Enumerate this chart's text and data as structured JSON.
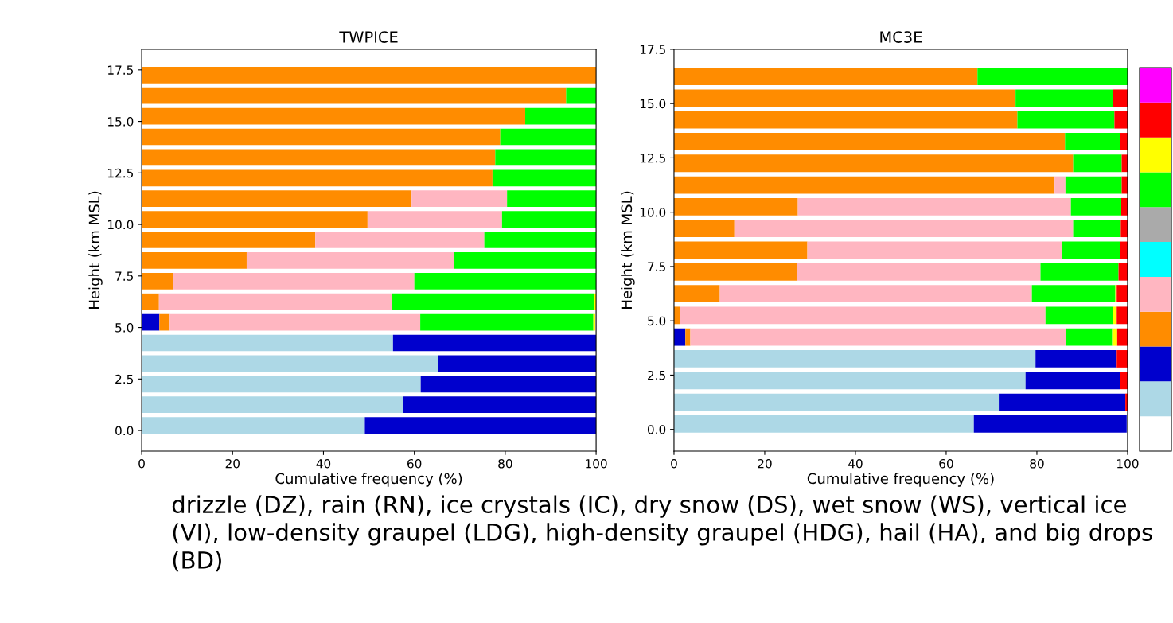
{
  "chart_data": [
    {
      "type": "bar",
      "orientation": "horizontal",
      "stacked": true,
      "title": "TWPICE",
      "xlabel": "Cumulative frequency (%)",
      "ylabel": "Height (km MSL)",
      "x": [
        0.25,
        1.25,
        2.25,
        3.25,
        4.25,
        5.25,
        6.25,
        7.25,
        8.25,
        9.25,
        10.25,
        11.25,
        12.25,
        13.25,
        14.25,
        15.25,
        16.25,
        17.25
      ],
      "xlim": [
        0,
        100
      ],
      "xticks": [
        0,
        20,
        40,
        60,
        80,
        100
      ],
      "ylim": [
        -1.0,
        18.5
      ],
      "yticks": [
        {
          "value": 0,
          "label": "0.0"
        },
        2.5,
        {
          "value": 5,
          "label": "5.0"
        },
        7.5,
        {
          "value": 10,
          "label": "10.0"
        },
        12.5,
        {
          "value": 15,
          "label": "15.0"
        },
        17.5
      ],
      "series": [
        {
          "color": "#add8e6",
          "values": [
            49.1,
            57.6,
            61.4,
            65.3,
            55.3,
            null,
            null,
            null,
            null,
            null,
            null,
            null,
            null,
            null,
            null,
            null,
            null,
            null
          ]
        },
        {
          "color": "#0000cd",
          "values": [
            50.9,
            42.4,
            38.6,
            34.7,
            44.7,
            3.9,
            null,
            null,
            null,
            null,
            null,
            null,
            null,
            null,
            null,
            null,
            null,
            null
          ]
        },
        {
          "color": "#ff8c00",
          "values": [
            null,
            null,
            null,
            null,
            null,
            2.1,
            3.8,
            7.0,
            23.1,
            38.2,
            49.7,
            59.4,
            77.2,
            77.8,
            78.9,
            84.4,
            93.4,
            100
          ]
        },
        {
          "color": "#ffb6c1",
          "values": [
            null,
            null,
            null,
            null,
            null,
            55.3,
            51.2,
            53.0,
            45.6,
            37.2,
            29.6,
            21.0,
            null,
            null,
            null,
            null,
            null,
            null
          ]
        },
        {
          "color": "#00ff00",
          "values": [
            null,
            null,
            null,
            null,
            null,
            38.1,
            44.5,
            40.0,
            31.3,
            24.6,
            20.7,
            19.6,
            22.8,
            22.2,
            21.1,
            15.6,
            6.6,
            null
          ]
        },
        {
          "color": "#ffff00",
          "values": [
            null,
            null,
            null,
            null,
            null,
            0.4,
            0.5,
            null,
            null,
            null,
            null,
            null,
            null,
            null,
            null,
            null,
            null,
            null
          ]
        }
      ],
      "annotations": [
        "drizzle (DZ), rain (RN), ice crystals (IC), dry snow (DS), wet snow (WS), vertical ice (VI), low-density graupel (LDG), high-density graupel (HDG), hail (HA), and big drops (BD)"
      ]
    },
    {
      "type": "bar",
      "orientation": "horizontal",
      "stacked": true,
      "title": "MC3E",
      "xlabel": "Cumulative frequency (%)",
      "ylabel": "Height (km MSL)",
      "x": [
        0.25,
        1.25,
        2.25,
        3.25,
        4.25,
        5.25,
        6.25,
        7.25,
        8.25,
        9.25,
        10.25,
        11.25,
        12.25,
        13.25,
        14.25,
        15.25,
        16.25
      ],
      "xlim": [
        0,
        100
      ],
      "xticks": [
        0,
        20,
        40,
        60,
        80,
        100
      ],
      "ylim": [
        -1.0,
        17.5
      ],
      "yticks": [
        {
          "value": 0,
          "label": "0.0"
        },
        2.5,
        {
          "value": 5,
          "label": "5.0"
        },
        7.5,
        {
          "value": 10,
          "label": "10.0"
        },
        12.5,
        {
          "value": 15,
          "label": "15.0"
        },
        17.5
      ],
      "series": [
        {
          "color": "#add8e6",
          "values": [
            66.1,
            71.6,
            77.5,
            79.7,
            null,
            null,
            null,
            null,
            null,
            null,
            null,
            null,
            null,
            null,
            null,
            null,
            null
          ]
        },
        {
          "color": "#0000cd",
          "values": [
            33.7,
            27.9,
            20.9,
            17.9,
            2.5,
            null,
            null,
            null,
            null,
            null,
            null,
            null,
            null,
            null,
            null,
            null,
            null
          ]
        },
        {
          "color": "#ff8c00",
          "values": [
            null,
            null,
            null,
            null,
            1.1,
            1.3,
            10.1,
            27.2,
            29.4,
            13.3,
            27.3,
            83.9,
            88.0,
            86.2,
            75.7,
            75.3,
            66.9
          ]
        },
        {
          "color": "#ffb6c1",
          "values": [
            null,
            null,
            null,
            null,
            82.8,
            80.6,
            68.8,
            53.6,
            56.1,
            74.7,
            60.2,
            2.4,
            null,
            null,
            null,
            null,
            null
          ]
        },
        {
          "color": "#00ff00",
          "values": [
            null,
            null,
            null,
            null,
            10.2,
            14.9,
            18.4,
            17.2,
            12.8,
            10.5,
            11.1,
            12.4,
            10.7,
            12.1,
            21.4,
            21.4,
            33.1
          ]
        },
        {
          "color": "#ffff00",
          "values": [
            null,
            null,
            null,
            null,
            1.1,
            0.8,
            0.3,
            null,
            null,
            null,
            null,
            null,
            null,
            null,
            null,
            null,
            null
          ]
        },
        {
          "color": "#ff0000",
          "values": [
            null,
            0.5,
            1.6,
            2.4,
            2.3,
            2.4,
            2.4,
            2.0,
            1.7,
            1.5,
            1.4,
            1.3,
            1.3,
            1.7,
            2.9,
            3.3,
            null
          ]
        }
      ]
    }
  ]
}
